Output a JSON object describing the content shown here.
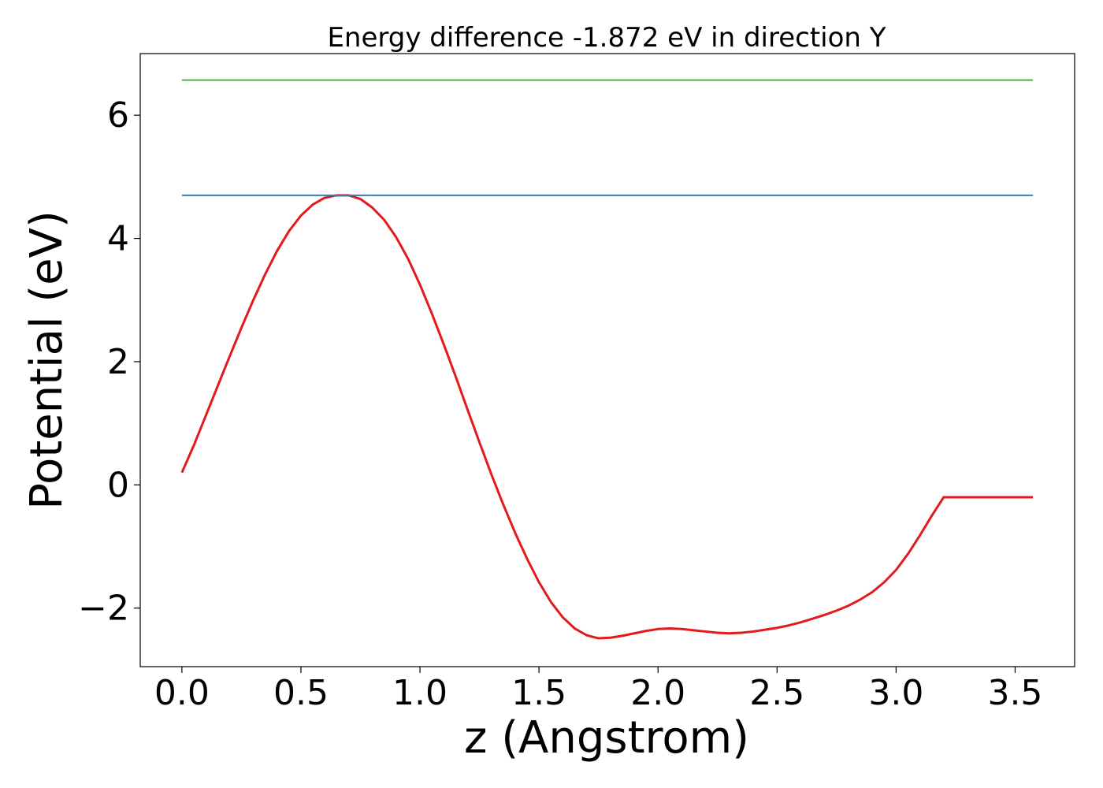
{
  "chart_data": {
    "type": "line",
    "title": "Energy difference -1.872 eV in direction Y",
    "xlabel": "z (Angstrom)",
    "ylabel": "Potential (eV)",
    "xlim": [
      -0.175,
      3.75
    ],
    "ylim": [
      -2.95,
      7.0
    ],
    "xticks": [
      0.0,
      0.5,
      1.0,
      1.5,
      2.0,
      2.5,
      3.0,
      3.5
    ],
    "xtick_labels": [
      "0.0",
      "0.5",
      "1.0",
      "1.5",
      "2.0",
      "2.5",
      "3.0",
      "3.5"
    ],
    "yticks": [
      -2,
      0,
      2,
      4,
      6
    ],
    "ytick_labels": [
      "−2",
      "0",
      "2",
      "4",
      "6"
    ],
    "grid": false,
    "legend": "none",
    "series": [
      {
        "color": "#e31a1c",
        "x": [
          0.0,
          0.05,
          0.1,
          0.15,
          0.2,
          0.25,
          0.3,
          0.35,
          0.4,
          0.45,
          0.5,
          0.55,
          0.6,
          0.65,
          0.7,
          0.75,
          0.8,
          0.85,
          0.9,
          0.95,
          1.0,
          1.05,
          1.1,
          1.15,
          1.2,
          1.25,
          1.3,
          1.35,
          1.4,
          1.45,
          1.5,
          1.55,
          1.6,
          1.65,
          1.7,
          1.75,
          1.8,
          1.85,
          1.9,
          1.95,
          2.0,
          2.05,
          2.1,
          2.15,
          2.2,
          2.25,
          2.3,
          2.35,
          2.4,
          2.45,
          2.5,
          2.55,
          2.6,
          2.65,
          2.7,
          2.75,
          2.8,
          2.85,
          2.9,
          2.95,
          3.0,
          3.05,
          3.1,
          3.15,
          3.2,
          3.25,
          3.3,
          3.35,
          3.4,
          3.45,
          3.5,
          3.55,
          3.575
        ],
        "values": [
          0.2,
          0.64,
          1.12,
          1.6,
          2.08,
          2.55,
          3.0,
          3.42,
          3.8,
          4.12,
          4.37,
          4.55,
          4.66,
          4.7,
          4.7,
          4.64,
          4.5,
          4.3,
          4.02,
          3.67,
          3.25,
          2.78,
          2.28,
          1.76,
          1.22,
          0.69,
          0.17,
          -0.32,
          -0.78,
          -1.2,
          -1.58,
          -1.9,
          -2.15,
          -2.33,
          -2.44,
          -2.49,
          -2.48,
          -2.45,
          -2.41,
          -2.37,
          -2.34,
          -2.33,
          -2.34,
          -2.36,
          -2.38,
          -2.4,
          -2.41,
          -2.4,
          -2.38,
          -2.35,
          -2.32,
          -2.28,
          -2.23,
          -2.17,
          -2.11,
          -2.04,
          -1.96,
          -1.86,
          -1.74,
          -1.58,
          -1.38,
          -1.12,
          -0.82,
          -0.5,
          -0.2,
          -0.2,
          -0.2,
          -0.2,
          -0.2,
          -0.2,
          -0.2,
          -0.2,
          -0.2
        ]
      },
      {
        "color": "#3a7fae",
        "x": [
          0.0,
          3.575
        ],
        "values": [
          4.7,
          4.7
        ]
      },
      {
        "color": "#4daf4a",
        "x": [
          0.0,
          3.575
        ],
        "values": [
          6.57,
          6.57
        ]
      }
    ]
  }
}
